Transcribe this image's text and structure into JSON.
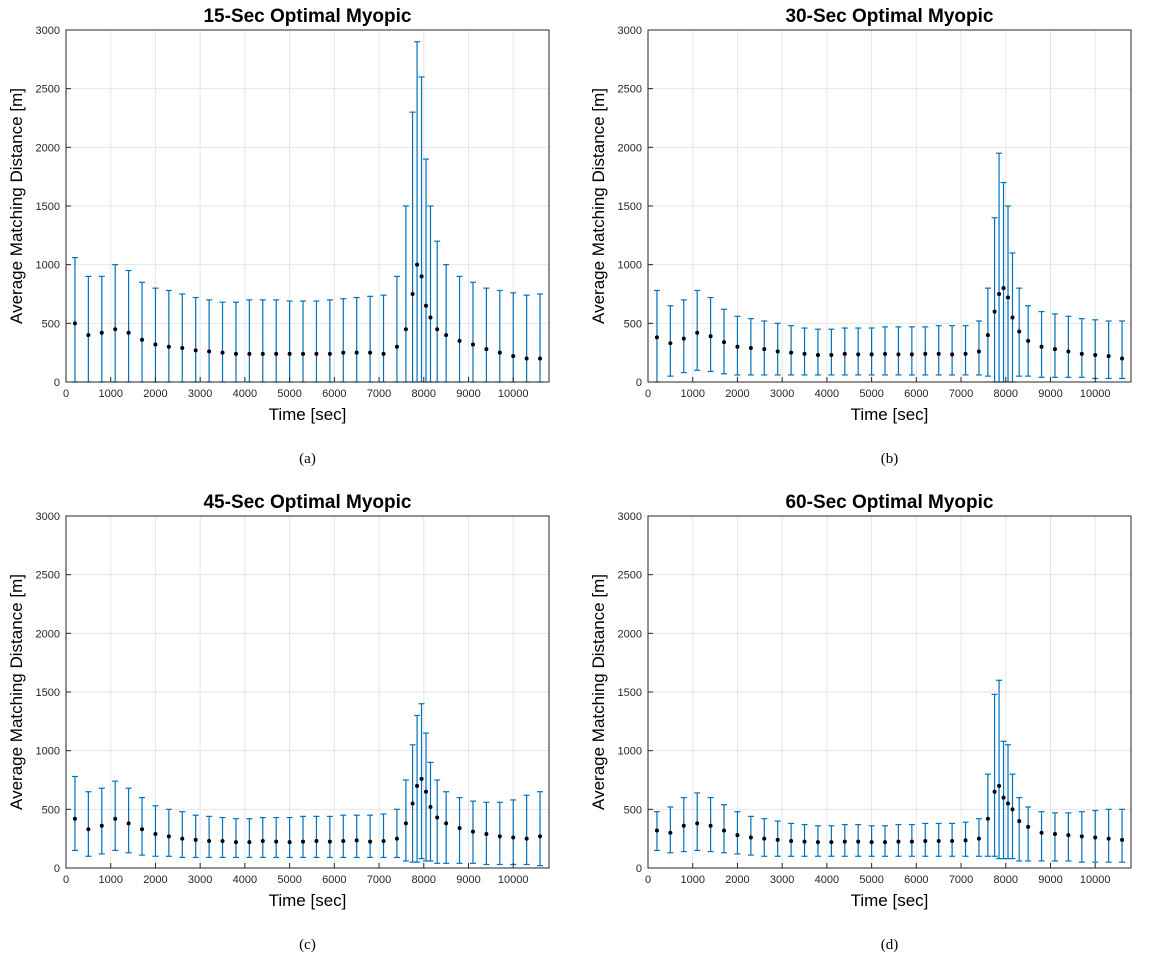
{
  "figure": {
    "colors": {
      "errorbar": "#0072BD",
      "marker": "#000000",
      "grid": "#e6e6e6"
    }
  },
  "chart_data": [
    {
      "type": "scatter",
      "title": "15-Sec Optimal Myopic",
      "caption": "(a)",
      "xlabel": "Time [sec]",
      "ylabel": "Average Matching Distance [m]",
      "xlim": [
        0,
        10800
      ],
      "ylim": [
        0,
        3000
      ],
      "xticks": [
        0,
        1000,
        2000,
        3000,
        4000,
        5000,
        6000,
        7000,
        8000,
        9000,
        10000
      ],
      "yticks": [
        0,
        500,
        1000,
        1500,
        2000,
        2500,
        3000
      ],
      "grid": true,
      "error_bars": true,
      "series": [
        {
          "x": [
            200,
            500,
            800,
            1100,
            1400,
            1700,
            2000,
            2300,
            2600,
            2900,
            3200,
            3500,
            3800,
            4100,
            4400,
            4700,
            5000,
            5300,
            5600,
            5900,
            6200,
            6500,
            6800,
            7100,
            7400,
            7600,
            7750,
            7850,
            7950,
            8050,
            8150,
            8300,
            8500,
            8800,
            9100,
            9400,
            9700,
            10000,
            10300,
            10600
          ],
          "y": [
            500,
            400,
            420,
            450,
            420,
            360,
            320,
            300,
            290,
            270,
            260,
            250,
            240,
            240,
            240,
            240,
            240,
            240,
            240,
            240,
            250,
            250,
            250,
            240,
            300,
            450,
            750,
            1000,
            900,
            650,
            550,
            450,
            400,
            350,
            320,
            280,
            250,
            220,
            200,
            200
          ],
          "err_upper": [
            1060,
            900,
            900,
            1000,
            950,
            850,
            800,
            780,
            750,
            720,
            700,
            680,
            680,
            700,
            700,
            700,
            690,
            690,
            690,
            700,
            710,
            720,
            730,
            740,
            900,
            1500,
            2300,
            2900,
            2600,
            1900,
            1500,
            1200,
            1000,
            900,
            850,
            800,
            780,
            760,
            740,
            750
          ],
          "err_lower": [
            0,
            0,
            0,
            0,
            0,
            0,
            0,
            0,
            0,
            0,
            0,
            0,
            0,
            0,
            0,
            0,
            0,
            0,
            0,
            0,
            0,
            0,
            0,
            0,
            0,
            0,
            0,
            0,
            0,
            0,
            0,
            0,
            0,
            0,
            0,
            0,
            0,
            0,
            0,
            0
          ]
        }
      ]
    },
    {
      "type": "scatter",
      "title": "30-Sec Optimal Myopic",
      "caption": "(b)",
      "xlabel": "Time [sec]",
      "ylabel": "Average Matching Distance [m]",
      "xlim": [
        0,
        10800
      ],
      "ylim": [
        0,
        3000
      ],
      "xticks": [
        0,
        1000,
        2000,
        3000,
        4000,
        5000,
        6000,
        7000,
        8000,
        9000,
        10000
      ],
      "yticks": [
        0,
        500,
        1000,
        1500,
        2000,
        2500,
        3000
      ],
      "grid": true,
      "error_bars": true,
      "series": [
        {
          "x": [
            200,
            500,
            800,
            1100,
            1400,
            1700,
            2000,
            2300,
            2600,
            2900,
            3200,
            3500,
            3800,
            4100,
            4400,
            4700,
            5000,
            5300,
            5600,
            5900,
            6200,
            6500,
            6800,
            7100,
            7400,
            7600,
            7750,
            7850,
            7950,
            8050,
            8150,
            8300,
            8500,
            8800,
            9100,
            9400,
            9700,
            10000,
            10300,
            10600
          ],
          "y": [
            380,
            330,
            370,
            420,
            390,
            340,
            300,
            290,
            280,
            260,
            250,
            240,
            230,
            230,
            240,
            235,
            235,
            240,
            235,
            235,
            240,
            240,
            235,
            240,
            260,
            400,
            600,
            750,
            800,
            720,
            550,
            430,
            350,
            300,
            280,
            260,
            240,
            230,
            220,
            200
          ],
          "err_upper": [
            780,
            650,
            700,
            780,
            720,
            620,
            560,
            540,
            520,
            500,
            480,
            460,
            450,
            450,
            460,
            460,
            460,
            470,
            470,
            470,
            470,
            480,
            480,
            480,
            520,
            800,
            1400,
            1950,
            1700,
            1500,
            1100,
            800,
            650,
            600,
            580,
            560,
            540,
            530,
            520,
            520
          ],
          "err_lower": [
            0,
            50,
            80,
            100,
            90,
            70,
            60,
            60,
            60,
            60,
            60,
            60,
            60,
            60,
            60,
            60,
            60,
            60,
            60,
            60,
            60,
            60,
            60,
            60,
            60,
            50,
            0,
            0,
            0,
            0,
            0,
            50,
            50,
            40,
            40,
            40,
            40,
            30,
            30,
            30
          ]
        }
      ]
    },
    {
      "type": "scatter",
      "title": "45-Sec Optimal Myopic",
      "caption": "(c)",
      "xlabel": "Time [sec]",
      "ylabel": "Average Matching Distance [m]",
      "xlim": [
        0,
        10800
      ],
      "ylim": [
        0,
        3000
      ],
      "xticks": [
        0,
        1000,
        2000,
        3000,
        4000,
        5000,
        6000,
        7000,
        8000,
        9000,
        10000
      ],
      "yticks": [
        0,
        500,
        1000,
        1500,
        2000,
        2500,
        3000
      ],
      "grid": true,
      "error_bars": true,
      "series": [
        {
          "x": [
            200,
            500,
            800,
            1100,
            1400,
            1700,
            2000,
            2300,
            2600,
            2900,
            3200,
            3500,
            3800,
            4100,
            4400,
            4700,
            5000,
            5300,
            5600,
            5900,
            6200,
            6500,
            6800,
            7100,
            7400,
            7600,
            7750,
            7850,
            7950,
            8050,
            8150,
            8300,
            8500,
            8800,
            9100,
            9400,
            9700,
            10000,
            10300,
            10600
          ],
          "y": [
            420,
            330,
            360,
            420,
            380,
            330,
            290,
            270,
            250,
            240,
            230,
            230,
            220,
            220,
            230,
            225,
            220,
            225,
            230,
            225,
            230,
            235,
            225,
            230,
            250,
            380,
            550,
            700,
            760,
            650,
            520,
            430,
            380,
            340,
            310,
            290,
            270,
            260,
            250,
            270
          ],
          "err_upper": [
            780,
            650,
            680,
            740,
            680,
            600,
            530,
            500,
            480,
            450,
            440,
            430,
            420,
            420,
            430,
            430,
            430,
            440,
            440,
            440,
            450,
            450,
            450,
            460,
            500,
            750,
            1050,
            1300,
            1400,
            1150,
            900,
            750,
            650,
            600,
            570,
            560,
            560,
            580,
            620,
            650
          ],
          "err_lower": [
            150,
            100,
            120,
            150,
            130,
            110,
            100,
            100,
            90,
            90,
            90,
            90,
            90,
            90,
            90,
            90,
            90,
            90,
            90,
            90,
            90,
            90,
            90,
            90,
            90,
            60,
            50,
            50,
            80,
            60,
            60,
            40,
            40,
            40,
            40,
            30,
            30,
            30,
            30,
            20
          ]
        }
      ]
    },
    {
      "type": "scatter",
      "title": "60-Sec Optimal Myopic",
      "caption": "(d)",
      "xlabel": "Time [sec]",
      "ylabel": "Average Matching Distance [m]",
      "xlim": [
        0,
        10800
      ],
      "ylim": [
        0,
        3000
      ],
      "xticks": [
        0,
        1000,
        2000,
        3000,
        4000,
        5000,
        6000,
        7000,
        8000,
        9000,
        10000
      ],
      "yticks": [
        0,
        500,
        1000,
        1500,
        2000,
        2500,
        3000
      ],
      "grid": true,
      "error_bars": true,
      "series": [
        {
          "x": [
            200,
            500,
            800,
            1100,
            1400,
            1700,
            2000,
            2300,
            2600,
            2900,
            3200,
            3500,
            3800,
            4100,
            4400,
            4700,
            5000,
            5300,
            5600,
            5900,
            6200,
            6500,
            6800,
            7100,
            7400,
            7600,
            7750,
            7850,
            7950,
            8050,
            8150,
            8300,
            8500,
            8800,
            9100,
            9400,
            9700,
            10000,
            10300,
            10600
          ],
          "y": [
            320,
            300,
            360,
            380,
            360,
            320,
            280,
            260,
            250,
            240,
            230,
            225,
            220,
            220,
            225,
            225,
            220,
            220,
            225,
            225,
            230,
            230,
            230,
            235,
            250,
            420,
            650,
            700,
            600,
            550,
            500,
            400,
            350,
            300,
            290,
            280,
            270,
            260,
            250,
            240
          ],
          "err_upper": [
            480,
            520,
            600,
            640,
            600,
            540,
            480,
            440,
            420,
            400,
            380,
            370,
            360,
            360,
            370,
            370,
            360,
            360,
            370,
            370,
            380,
            380,
            380,
            390,
            420,
            800,
            1480,
            1600,
            1080,
            1050,
            800,
            600,
            520,
            480,
            470,
            470,
            480,
            490,
            500,
            500
          ],
          "err_lower": [
            150,
            130,
            140,
            150,
            140,
            130,
            120,
            110,
            100,
            100,
            100,
            100,
            100,
            100,
            100,
            100,
            100,
            100,
            100,
            100,
            100,
            100,
            100,
            100,
            100,
            100,
            100,
            80,
            80,
            80,
            80,
            60,
            60,
            60,
            60,
            60,
            50,
            50,
            50,
            50
          ]
        }
      ]
    }
  ]
}
